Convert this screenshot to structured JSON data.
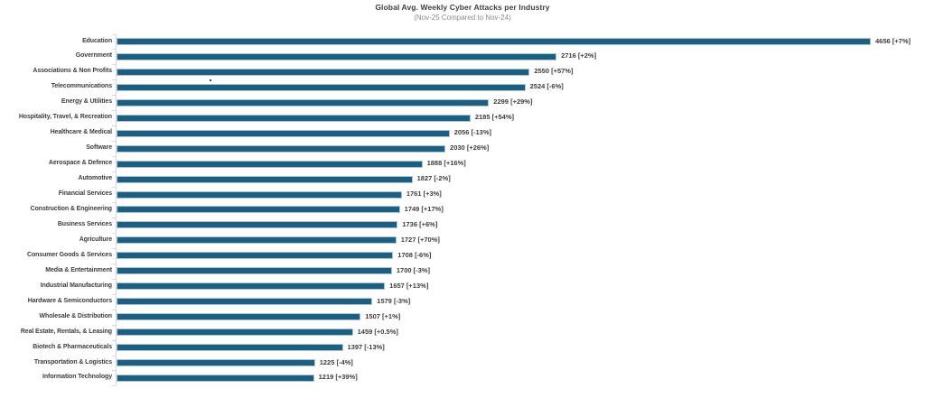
{
  "chart_data": {
    "type": "bar",
    "orientation": "horizontal",
    "title": "Global Avg. Weekly Cyber Attacks per Industry",
    "subtitle": "(Nov-25 Compared to Nov-24)",
    "legend": null,
    "grid": false,
    "xlim": [
      0,
      4656
    ],
    "bar_color": "#1d5e81",
    "bar_edge_color": "#a9c6d8",
    "axis_color": "#d9d9d9",
    "text_color": "#3d3d3d",
    "subtitle_color": "#8c8c8c",
    "categories": [
      "Education",
      "Government",
      "Associations & Non Profits",
      "Telecommunications",
      "Energy & Utilities",
      "Hospitality, Travel, & Recreation",
      "Healthcare & Medical",
      "Software",
      "Aerospace & Defence",
      "Automotive",
      "Financial Services",
      "Construction & Engineering",
      "Business Services",
      "Agriculture",
      "Consumer Goods & Services",
      "Media & Entertainment",
      "Industrial Manufacturing",
      "Hardware & Semiconductors",
      "Wholesale & Distribution",
      "Real Estate, Rentals, & Leasing",
      "Biotech & Pharmaceuticals",
      "Transportation & Logistics",
      "Information Technology"
    ],
    "values": [
      4656,
      2716,
      2550,
      2524,
      2299,
      2185,
      2056,
      2030,
      1888,
      1827,
      1761,
      1749,
      1736,
      1727,
      1708,
      1700,
      1657,
      1579,
      1507,
      1459,
      1397,
      1225,
      1219
    ],
    "changes": [
      "+7%",
      "+2%",
      "+57%",
      "-6%",
      "+29%",
      "+54%",
      "-13%",
      "+26%",
      "+16%",
      "-2%",
      "+3%",
      "+17%",
      "+6%",
      "+70%",
      "-6%",
      "-3%",
      "+13%",
      "-3%",
      "+1%",
      "+0.5%",
      "-13%",
      "-4%",
      "+39%"
    ],
    "data_labels": [
      "4656 [+7%]",
      "2716 [+2%]",
      "2550 [+57%]",
      "2524 [-6%]",
      "2299 [+29%]",
      "2185 [+54%]",
      "2056 [-13%]",
      "2030 [+26%]",
      "1888 [+16%]",
      "1827 [-2%]",
      "1761 [+3%]",
      "1749 [+17%]",
      "1736 [+6%]",
      "1727 [+70%]",
      "1708 [-6%]",
      "1700 [-3%]",
      "1657 [+13%]",
      "1579 [-3%]",
      "1507 [+1%]",
      "1459 [+0.5%]",
      "1397 [-13%]",
      "1225 [-4%]",
      "1219 [+39%]"
    ]
  }
}
